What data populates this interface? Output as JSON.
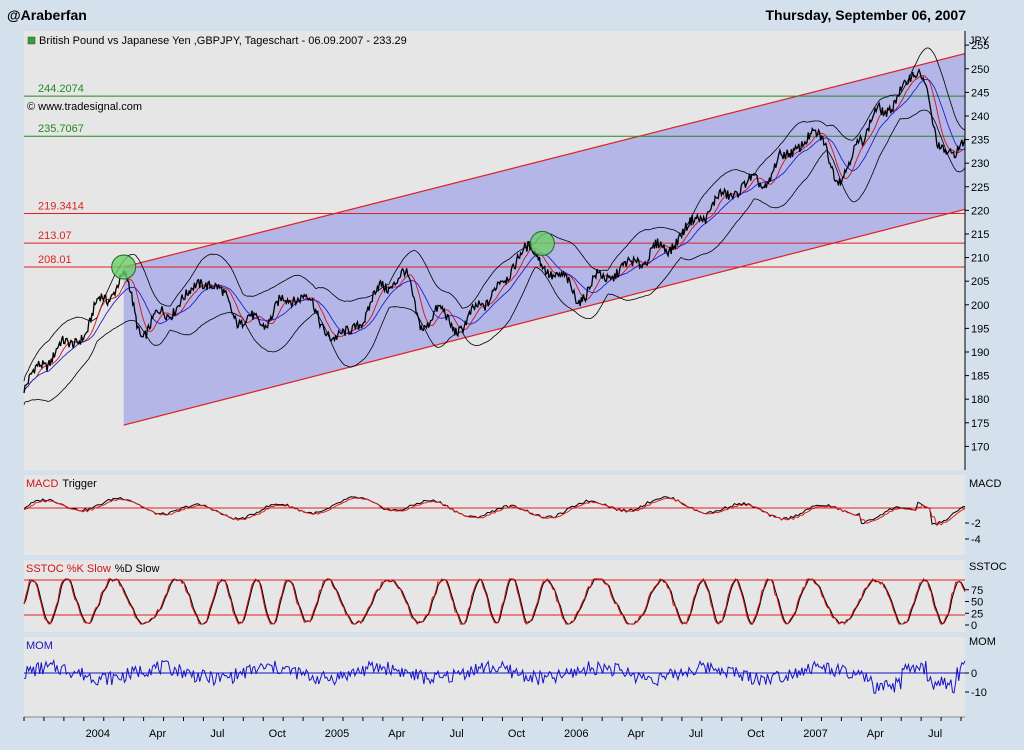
{
  "header": {
    "user": "@Araberfan",
    "date": "Thursday, September 06, 2007"
  },
  "panels": {
    "price": {
      "title": "British Pound vs Japanese Yen ,GBPJPY, Tageschart - 06.09.2007 - 233.29",
      "unit": "JPY",
      "copyright": "© www.tradesignal.com"
    },
    "macd": {
      "title": "MACD",
      "label2": "Trigger",
      "right": "MACD"
    },
    "sstoc": {
      "title": "SSTOC %K Slow",
      "label2": "%D Slow",
      "right": "SSTOC"
    },
    "mom": {
      "title": "MOM",
      "right": "MOM"
    }
  },
  "colors": {
    "background": "#d4e0ec",
    "plot": "#e6e6e6",
    "channel": "#b4b6e8",
    "red": "#e02020",
    "green": "#1e8c1e",
    "blue": "#1414c8"
  },
  "chart_data": [
    {
      "type": "line",
      "panel": "price",
      "title": "British Pound vs Japanese Yen ,GBPJPY, Tageschart - 06.09.2007 - 233.29",
      "ylabel": "JPY",
      "ylim": [
        165,
        258
      ],
      "yticks": [
        170,
        175,
        180,
        185,
        190,
        195,
        200,
        205,
        210,
        215,
        220,
        225,
        230,
        235,
        240,
        245,
        250,
        255
      ],
      "x_ticks": [
        "2004",
        "Apr",
        "Jul",
        "Oct",
        "2005",
        "Apr",
        "Jul",
        "Oct",
        "2006",
        "Apr",
        "Jul",
        "Oct",
        "2007",
        "Apr",
        "Jul"
      ],
      "series": [
        {
          "name": "GBPJPY",
          "x": [
            "2003-10",
            "2003-11",
            "2003-12",
            "2004-01",
            "2004-02",
            "2004-03",
            "2004-04",
            "2004-05",
            "2004-06",
            "2004-07",
            "2004-08",
            "2004-09",
            "2004-10",
            "2004-11",
            "2004-12",
            "2005-01",
            "2005-02",
            "2005-03",
            "2005-04",
            "2005-05",
            "2005-06",
            "2005-07",
            "2005-08",
            "2005-09",
            "2005-10",
            "2005-11",
            "2005-12",
            "2006-01",
            "2006-02",
            "2006-03",
            "2006-04",
            "2006-05",
            "2006-06",
            "2006-07",
            "2006-08",
            "2006-09",
            "2006-10",
            "2006-11",
            "2006-12",
            "2007-01",
            "2007-02",
            "2007-03",
            "2007-04",
            "2007-05",
            "2007-06",
            "2007-07",
            "2007-08",
            "2007-09"
          ],
          "values": [
            182,
            187,
            190,
            194,
            203,
            206,
            194,
            197,
            200,
            206,
            203,
            197,
            196,
            199,
            202,
            196,
            194,
            198,
            203,
            205,
            196,
            199,
            196,
            201,
            203,
            211,
            209,
            206,
            203,
            206,
            206,
            209,
            212,
            216,
            220,
            222,
            224,
            225,
            231,
            236,
            236,
            225,
            235,
            240,
            246,
            251,
            232,
            233.29
          ]
        }
      ],
      "horizontal_levels": [
        {
          "label": "244.2074",
          "value": 244.2074,
          "color": "green"
        },
        {
          "label": "235.7067",
          "value": 235.7067,
          "color": "green"
        },
        {
          "label": "219.3414",
          "value": 219.3414,
          "color": "red"
        },
        {
          "label": "213.07",
          "value": 213.07,
          "color": "red"
        },
        {
          "label": "208.01",
          "value": 208.01,
          "color": "red"
        }
      ],
      "channel": {
        "upper": [
          [
            "2004-03",
            208
          ],
          [
            "2007-09",
            253
          ]
        ],
        "lower": [
          [
            "2004-03",
            174.5
          ],
          [
            "2007-09",
            220
          ]
        ]
      },
      "circles": [
        {
          "x": "2004-03",
          "y": 208
        },
        {
          "x": "2005-12",
          "y": 213
        }
      ]
    },
    {
      "type": "line",
      "panel": "macd",
      "ylabel": "MACD",
      "yticks": [
        -2,
        -4
      ],
      "series": [
        {
          "name": "MACD",
          "color": "black"
        },
        {
          "name": "Trigger",
          "color": "red"
        }
      ]
    },
    {
      "type": "line",
      "panel": "sstoc",
      "ylabel": "SSTOC",
      "ylim": [
        0,
        100
      ],
      "yticks": [
        75,
        50,
        25,
        0
      ],
      "levels": [
        80,
        20
      ],
      "series": [
        {
          "name": "%K Slow",
          "color": "red"
        },
        {
          "name": "%D Slow",
          "color": "black"
        }
      ]
    },
    {
      "type": "line",
      "panel": "mom",
      "ylabel": "MOM",
      "yticks": [
        0,
        -10
      ],
      "series": [
        {
          "name": "MOM",
          "color": "blue"
        }
      ]
    }
  ]
}
